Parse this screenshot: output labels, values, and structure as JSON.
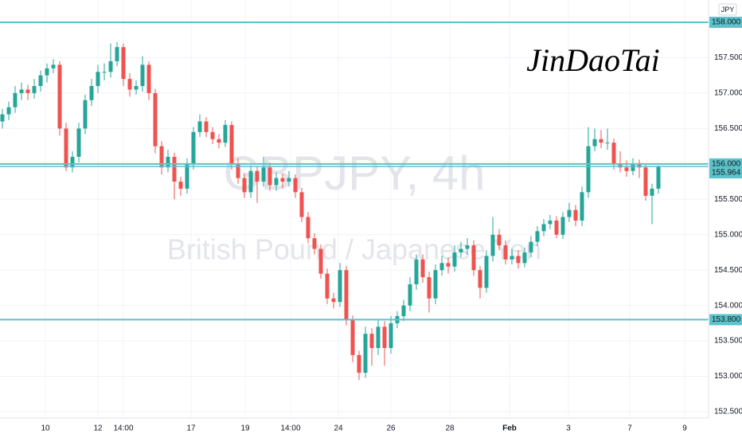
{
  "chart_data": {
    "type": "candlestick",
    "symbol_title": "GBPJPY, 4h",
    "subtitle": "British Pound / Japanese Yen",
    "signature": "JinDaoTai",
    "currency": "JPY",
    "up_color": "#26a69a",
    "down_color": "#ef5350",
    "level_color": "#5bc3c9",
    "grid": true,
    "ylim": [
      152.41,
      158.315
    ],
    "xlim": [
      -0.375,
      110.875
    ],
    "yticks": [
      {
        "value": 152.5,
        "label": "152.500"
      },
      {
        "value": 153,
        "label": "153.000"
      },
      {
        "value": 153.5,
        "label": "153.500"
      },
      {
        "value": 154,
        "label": "154.000"
      },
      {
        "value": 154.5,
        "label": "154.500"
      },
      {
        "value": 155,
        "label": "155.000"
      },
      {
        "value": 155.5,
        "label": "155.500"
      },
      {
        "value": 156.5,
        "label": "156.500"
      },
      {
        "value": 157,
        "label": "157.000"
      },
      {
        "value": 157.5,
        "label": "157.500"
      }
    ],
    "xticks": [
      {
        "value": 6.75,
        "label": "10"
      },
      {
        "value": 15,
        "label": "12"
      },
      {
        "value": 19,
        "label": "14:00"
      },
      {
        "value": 29.625,
        "label": "17"
      },
      {
        "value": 38.125,
        "label": "19"
      },
      {
        "value": 45.25,
        "label": "14:00"
      },
      {
        "value": 52.75,
        "label": "24"
      },
      {
        "value": 61,
        "label": "26"
      },
      {
        "value": 70.25,
        "label": "28"
      },
      {
        "value": 79.625,
        "label": "Feb"
      },
      {
        "value": 88.875,
        "label": "3"
      },
      {
        "value": 98.5,
        "label": "7"
      },
      {
        "value": 107.125,
        "label": "9"
      }
    ],
    "levels": [
      {
        "value": 158,
        "label": "158.000"
      },
      {
        "value": 156,
        "label": "156.000"
      },
      {
        "value": 153.8,
        "label": "153.800"
      }
    ],
    "last_price": {
      "value": 155.964,
      "label": "155.964"
    },
    "ohlc": [
      [
        156.6,
        156.78,
        156.5,
        156.7
      ],
      [
        156.7,
        156.88,
        156.62,
        156.8
      ],
      [
        156.8,
        157.1,
        156.72,
        157.0
      ],
      [
        157.0,
        157.15,
        156.9,
        157.05
      ],
      [
        157.05,
        157.12,
        156.9,
        157.0
      ],
      [
        157.0,
        157.2,
        156.92,
        157.1
      ],
      [
        157.1,
        157.32,
        157.02,
        157.25
      ],
      [
        157.25,
        157.42,
        157.15,
        157.35
      ],
      [
        157.35,
        157.48,
        157.28,
        157.4
      ],
      [
        157.4,
        157.45,
        156.4,
        156.5
      ],
      [
        156.5,
        156.58,
        155.9,
        155.95
      ],
      [
        155.95,
        156.18,
        155.88,
        156.1
      ],
      [
        156.1,
        156.58,
        156.02,
        156.5
      ],
      [
        156.5,
        156.98,
        156.42,
        156.9
      ],
      [
        156.9,
        157.2,
        156.82,
        157.1
      ],
      [
        157.1,
        157.4,
        157.0,
        157.3
      ],
      [
        157.3,
        157.42,
        157.18,
        157.3
      ],
      [
        157.3,
        157.7,
        157.22,
        157.45
      ],
      [
        157.45,
        157.72,
        157.38,
        157.65
      ],
      [
        157.65,
        157.7,
        157.1,
        157.2
      ],
      [
        157.2,
        157.28,
        156.95,
        157.05
      ],
      [
        157.05,
        157.18,
        156.98,
        157.1
      ],
      [
        157.1,
        157.52,
        157.02,
        157.4
      ],
      [
        157.4,
        157.45,
        156.9,
        157.0
      ],
      [
        157.0,
        157.06,
        156.15,
        156.25
      ],
      [
        156.25,
        156.32,
        155.85,
        155.95
      ],
      [
        155.95,
        156.2,
        155.88,
        156.1
      ],
      [
        156.1,
        156.16,
        155.5,
        155.75
      ],
      [
        155.75,
        155.82,
        155.55,
        155.65
      ],
      [
        155.65,
        156.08,
        155.58,
        156.0
      ],
      [
        156.0,
        156.52,
        155.92,
        156.45
      ],
      [
        156.45,
        156.7,
        156.38,
        156.6
      ],
      [
        156.6,
        156.66,
        156.38,
        156.45
      ],
      [
        156.45,
        156.52,
        156.28,
        156.35
      ],
      [
        156.35,
        156.42,
        156.22,
        156.3
      ],
      [
        156.3,
        156.62,
        156.24,
        156.55
      ],
      [
        156.55,
        156.6,
        155.92,
        156.0
      ],
      [
        156.0,
        156.08,
        155.72,
        155.8
      ],
      [
        155.8,
        155.86,
        155.52,
        155.6
      ],
      [
        155.6,
        155.98,
        155.52,
        155.9
      ],
      [
        155.9,
        155.96,
        155.45,
        155.75
      ],
      [
        155.75,
        156.1,
        155.68,
        155.95
      ],
      [
        155.95,
        156.02,
        155.62,
        155.7
      ],
      [
        155.7,
        155.88,
        155.62,
        155.8
      ],
      [
        155.8,
        155.86,
        155.66,
        155.75
      ],
      [
        155.75,
        155.9,
        155.68,
        155.8
      ],
      [
        155.8,
        155.85,
        155.52,
        155.6
      ],
      [
        155.6,
        155.66,
        155.18,
        155.25
      ],
      [
        155.25,
        155.32,
        154.88,
        154.95
      ],
      [
        154.95,
        155.02,
        154.72,
        154.8
      ],
      [
        154.8,
        154.86,
        154.38,
        154.45
      ],
      [
        154.45,
        154.52,
        154.02,
        154.1
      ],
      [
        154.1,
        154.18,
        153.96,
        154.05
      ],
      [
        154.05,
        154.6,
        153.98,
        154.5
      ],
      [
        154.5,
        154.56,
        153.72,
        153.8
      ],
      [
        153.8,
        153.86,
        153.2,
        153.3
      ],
      [
        153.3,
        153.36,
        152.95,
        153.05
      ],
      [
        153.05,
        153.7,
        152.98,
        153.6
      ],
      [
        153.6,
        153.68,
        153.15,
        153.4
      ],
      [
        153.4,
        153.8,
        153.3,
        153.7
      ],
      [
        153.7,
        153.78,
        153.15,
        153.4
      ],
      [
        153.4,
        153.85,
        153.32,
        153.75
      ],
      [
        153.75,
        153.92,
        153.68,
        153.85
      ],
      [
        153.85,
        154.08,
        153.78,
        154.0
      ],
      [
        154.0,
        154.4,
        153.92,
        154.3
      ],
      [
        154.3,
        154.72,
        154.22,
        154.65
      ],
      [
        154.65,
        154.72,
        154.32,
        154.4
      ],
      [
        154.4,
        154.48,
        153.9,
        154.1
      ],
      [
        154.1,
        154.58,
        154.02,
        154.5
      ],
      [
        154.5,
        154.7,
        154.42,
        154.6
      ],
      [
        154.6,
        154.68,
        154.45,
        154.55
      ],
      [
        154.55,
        154.85,
        154.48,
        154.75
      ],
      [
        154.75,
        154.9,
        154.68,
        154.8
      ],
      [
        154.8,
        154.95,
        154.72,
        154.85
      ],
      [
        154.85,
        154.92,
        154.42,
        154.5
      ],
      [
        154.5,
        154.56,
        154.1,
        154.25
      ],
      [
        154.25,
        154.78,
        154.18,
        154.7
      ],
      [
        154.7,
        155.25,
        154.62,
        155.0
      ],
      [
        155.0,
        155.08,
        154.78,
        154.85
      ],
      [
        154.85,
        154.92,
        154.58,
        154.65
      ],
      [
        154.65,
        154.8,
        154.58,
        154.7
      ],
      [
        154.7,
        154.78,
        154.52,
        154.6
      ],
      [
        154.6,
        154.82,
        154.54,
        154.75
      ],
      [
        154.75,
        154.98,
        154.68,
        154.9
      ],
      [
        154.9,
        155.12,
        154.84,
        155.05
      ],
      [
        155.05,
        155.22,
        154.98,
        155.15
      ],
      [
        155.15,
        155.28,
        155.08,
        155.2
      ],
      [
        155.2,
        155.26,
        154.95,
        155.0
      ],
      [
        155.0,
        155.32,
        154.94,
        155.25
      ],
      [
        155.25,
        155.45,
        155.18,
        155.35
      ],
      [
        155.35,
        155.42,
        155.12,
        155.2
      ],
      [
        155.2,
        155.68,
        155.12,
        155.6
      ],
      [
        155.6,
        156.52,
        155.52,
        156.25
      ],
      [
        156.25,
        156.5,
        156.18,
        156.35
      ],
      [
        156.35,
        156.48,
        156.22,
        156.3
      ],
      [
        156.3,
        156.5,
        156.2,
        156.3
      ],
      [
        156.3,
        156.36,
        155.92,
        156.0
      ],
      [
        156.0,
        156.18,
        155.88,
        155.95
      ],
      [
        155.95,
        156.05,
        155.82,
        155.9
      ],
      [
        155.9,
        156.08,
        155.84,
        156.0
      ],
      [
        156.0,
        156.06,
        155.8,
        155.95
      ],
      [
        155.95,
        156.0,
        155.48,
        155.55
      ],
      [
        155.55,
        155.72,
        155.15,
        155.65
      ],
      [
        155.65,
        155.98,
        155.58,
        155.96
      ]
    ]
  }
}
